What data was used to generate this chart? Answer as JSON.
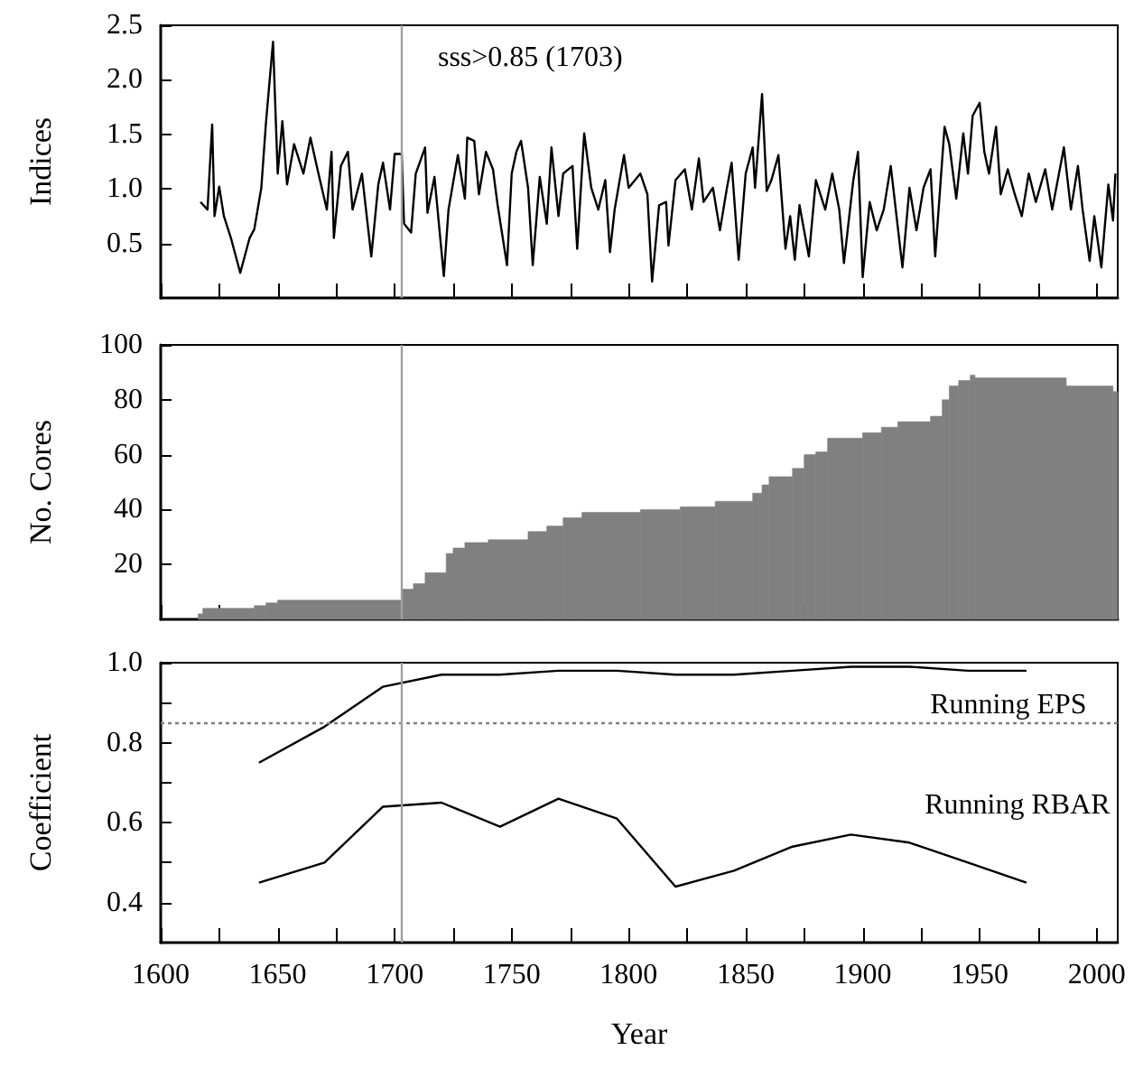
{
  "chart_data": [
    {
      "type": "line",
      "ylabel": "Indices",
      "color": "#000000",
      "x": [
        1617,
        1620,
        1622,
        1623,
        1625,
        1627,
        1630,
        1634,
        1638,
        1640,
        1643,
        1645,
        1648,
        1650,
        1652,
        1654,
        1657,
        1661,
        1664,
        1667,
        1671,
        1673,
        1674,
        1677,
        1680,
        1682,
        1686,
        1690,
        1693,
        1695,
        1698,
        1700,
        1703,
        1704,
        1707,
        1709,
        1713,
        1714,
        1717,
        1721,
        1723,
        1727,
        1730,
        1731,
        1734,
        1736,
        1739,
        1742,
        1744,
        1748,
        1750,
        1752,
        1754,
        1757,
        1759,
        1762,
        1765,
        1767,
        1770,
        1772,
        1776,
        1778,
        1781,
        1784,
        1787,
        1790,
        1792,
        1794,
        1798,
        1800,
        1805,
        1808,
        1810,
        1813,
        1816,
        1817,
        1820,
        1824,
        1827,
        1830,
        1832,
        1836,
        1839,
        1842,
        1844,
        1847,
        1850,
        1853,
        1854,
        1857,
        1859,
        1861,
        1864,
        1867,
        1869,
        1871,
        1873,
        1877,
        1880,
        1884,
        1887,
        1890,
        1892,
        1896,
        1898,
        1900,
        1903,
        1906,
        1909,
        1912,
        1917,
        1920,
        1923,
        1926,
        1929,
        1931,
        1935,
        1937,
        1940,
        1943,
        1945,
        1947,
        1950,
        1952,
        1954,
        1957,
        1959,
        1962,
        1965,
        1968,
        1971,
        1974,
        1978,
        1981,
        1986,
        1989,
        1992,
        1994,
        1997,
        1999,
        2002,
        2005,
        2007,
        2008
      ],
      "values": [
        0.88,
        0.81,
        1.59,
        0.75,
        1.02,
        0.75,
        0.55,
        0.23,
        0.55,
        0.63,
        1.01,
        1.61,
        2.35,
        1.14,
        1.62,
        1.04,
        1.41,
        1.14,
        1.47,
        1.18,
        0.81,
        1.34,
        0.55,
        1.21,
        1.34,
        0.81,
        1.14,
        0.38,
        1.04,
        1.24,
        0.81,
        1.32,
        1.32,
        0.68,
        0.6,
        1.14,
        1.38,
        0.78,
        1.11,
        0.2,
        0.81,
        1.31,
        0.91,
        1.47,
        1.44,
        0.95,
        1.34,
        1.18,
        0.85,
        0.3,
        1.14,
        1.34,
        1.44,
        1.01,
        0.3,
        1.11,
        0.68,
        1.38,
        0.75,
        1.14,
        1.21,
        0.45,
        1.51,
        1.01,
        0.81,
        1.08,
        0.42,
        0.81,
        1.31,
        1.01,
        1.14,
        0.95,
        0.15,
        0.85,
        0.88,
        0.48,
        1.08,
        1.18,
        0.81,
        1.28,
        0.88,
        1.01,
        0.62,
        1.01,
        1.24,
        0.35,
        1.14,
        1.38,
        1.01,
        1.87,
        0.98,
        1.08,
        1.31,
        0.45,
        0.75,
        0.35,
        0.85,
        0.38,
        1.08,
        0.81,
        1.14,
        0.81,
        0.32,
        1.08,
        1.34,
        0.19,
        0.88,
        0.62,
        0.81,
        1.21,
        0.28,
        1.01,
        0.62,
        1.01,
        1.18,
        0.38,
        1.57,
        1.41,
        0.91,
        1.51,
        1.14,
        1.67,
        1.79,
        1.34,
        1.14,
        1.57,
        0.95,
        1.18,
        0.95,
        0.75,
        1.14,
        0.88,
        1.18,
        0.81,
        1.38,
        0.81,
        1.21,
        0.81,
        0.34,
        0.75,
        0.28,
        1.04,
        0.71,
        1.14
      ],
      "xlim": [
        1600,
        2009
      ],
      "ylim": [
        0,
        2.5
      ],
      "yticks": [
        0.5,
        {
          "value": 1,
          "label": "1.0"
        },
        1.5,
        {
          "value": 2,
          "label": "2.0"
        },
        2.5
      ],
      "xticks": [
        1600,
        {
          "value": 1625,
          "label": null
        },
        1650,
        {
          "value": 1675,
          "label": null
        },
        1700,
        {
          "value": 1725,
          "label": null
        },
        1750,
        {
          "value": 1775,
          "label": null
        },
        1800,
        {
          "value": 1825,
          "label": null
        },
        1850,
        {
          "value": 1875,
          "label": null
        },
        1900,
        {
          "value": 1925,
          "label": null
        },
        1950,
        {
          "value": 1975,
          "label": null
        },
        2000
      ],
      "tick_labels": "y",
      "ref_lines": [
        {
          "axis": "x",
          "value": 1703,
          "label": "sss>0.85 (1703)",
          "color": "#a0a0a0"
        }
      ]
    },
    {
      "type": "histogram",
      "ylabel": "No. Cores",
      "color": "#808080",
      "bins": [
        1616,
        1618,
        1640,
        1645,
        1650,
        1703,
        1708,
        1713,
        1722,
        1725,
        1730,
        1740,
        1757,
        1765,
        1772,
        1780,
        1805,
        1822,
        1837,
        1853,
        1857,
        1860,
        1870,
        1875,
        1880,
        1885,
        1900,
        1908,
        1915,
        1929,
        1934,
        1937,
        1941,
        1946,
        1948,
        1987,
        2007,
        2009
      ],
      "values": [
        2,
        4,
        5,
        6,
        7,
        11,
        13,
        17,
        24,
        26,
        28,
        29,
        32,
        34,
        37,
        39,
        40,
        41,
        43,
        46,
        49,
        52,
        55,
        60,
        61,
        66,
        68,
        70,
        72,
        74,
        80,
        85,
        87,
        89,
        88,
        85,
        83
      ],
      "xlim": [
        1600,
        2009
      ],
      "ylim": [
        0,
        100
      ],
      "yticks": [
        20,
        40,
        60,
        80,
        100
      ],
      "xticks": [
        1600,
        {
          "value": 1625,
          "label": null
        },
        1650,
        {
          "value": 1675,
          "label": null
        },
        1700,
        {
          "value": 1725,
          "label": null
        },
        1750,
        {
          "value": 1775,
          "label": null
        },
        1800,
        {
          "value": 1825,
          "label": null
        },
        1850,
        {
          "value": 1875,
          "label": null
        },
        1900,
        {
          "value": 1925,
          "label": null
        },
        1950,
        {
          "value": 1975,
          "label": null
        },
        2000
      ],
      "tick_labels": "y",
      "ref_lines": [
        {
          "axis": "x",
          "value": 1703,
          "color": "#a0a0a0"
        }
      ]
    },
    {
      "type": "line",
      "xlabel": "Year",
      "ylabel": "Coefficient",
      "x": [
        1642,
        1670,
        1695,
        1720,
        1745,
        1770,
        1795,
        1820,
        1845,
        1870,
        1895,
        1920,
        1945,
        1970
      ],
      "series": [
        {
          "name": "Running EPS",
          "color": "#000000",
          "values": [
            0.75,
            0.84,
            0.94,
            0.97,
            0.97,
            0.98,
            0.98,
            0.97,
            0.97,
            0.98,
            0.99,
            0.99,
            0.98,
            0.98
          ]
        },
        {
          "name": "Running RBAR",
          "color": "#000000",
          "values": [
            0.45,
            0.5,
            0.64,
            0.65,
            0.59,
            0.66,
            0.61,
            0.44,
            0.48,
            0.54,
            0.57,
            0.55,
            0.5,
            0.45
          ]
        }
      ],
      "xlim": [
        1600,
        2009
      ],
      "ylim": [
        0.3,
        1.0
      ],
      "yticks": [
        0.4,
        {
          "value": 0.5,
          "label": null
        },
        0.6,
        {
          "value": 0.7,
          "label": null
        },
        0.8,
        {
          "value": 0.9,
          "label": null
        },
        {
          "value": 1,
          "label": "1.0"
        }
      ],
      "xticks": [
        1600,
        {
          "value": 1625,
          "label": null
        },
        1650,
        {
          "value": 1675,
          "label": null
        },
        1700,
        {
          "value": 1725,
          "label": null
        },
        1750,
        {
          "value": 1775,
          "label": null
        },
        1800,
        {
          "value": 1825,
          "label": null
        },
        1850,
        {
          "value": 1875,
          "label": null
        },
        1900,
        {
          "value": 1925,
          "label": null
        },
        1950,
        {
          "value": 1975,
          "label": null
        },
        2000
      ],
      "ref_lines": [
        {
          "axis": "y",
          "value": 0.85,
          "color": "#808080",
          "line_style": "dotted"
        },
        {
          "axis": "x",
          "value": 1703,
          "color": "#a0a0a0"
        }
      ]
    }
  ]
}
